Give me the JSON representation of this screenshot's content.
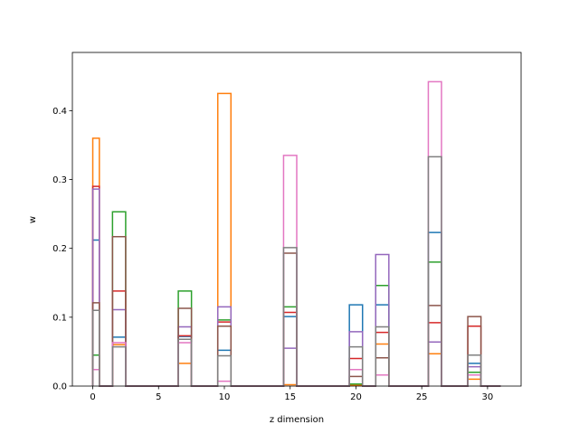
{
  "chart_data": {
    "type": "step",
    "title": "",
    "xlabel": "z dimension",
    "ylabel": "w",
    "xlim": [
      -1.55,
      32.55
    ],
    "ylim": [
      0,
      0.4845
    ],
    "xticks": [
      0,
      5,
      10,
      15,
      20,
      25,
      30
    ],
    "yticks": [
      0.0,
      0.1,
      0.2,
      0.3,
      0.4
    ],
    "xtick_labels": [
      "0",
      "5",
      "10",
      "15",
      "20",
      "25",
      "30"
    ],
    "ytick_labels": [
      "0.0",
      "0.1",
      "0.2",
      "0.3",
      "0.4"
    ],
    "grid": false,
    "legend": false,
    "bin_edges": [
      0,
      0.5,
      1.5,
      2.5,
      3.5,
      4.5,
      5.5,
      6.5,
      7.5,
      8.5,
      9.5,
      10.5,
      11.5,
      12.5,
      13.5,
      14.5,
      15.5,
      16.5,
      17.5,
      18.5,
      19.5,
      20.5,
      21.5,
      22.5,
      23.5,
      24.5,
      25.5,
      26.5,
      27.5,
      28.5,
      29.5,
      31
    ],
    "series": [
      {
        "color": "#1f77b4",
        "values": [
          0.212,
          0,
          0.071,
          0,
          0,
          0,
          0,
          0.072,
          0,
          0,
          0.052,
          0,
          0,
          0,
          0,
          0.101,
          0,
          0,
          0,
          0,
          0.118,
          0,
          0.118,
          0,
          0,
          0,
          0.223,
          0,
          0,
          0.033,
          0
        ]
      },
      {
        "color": "#ff7f0e",
        "values": [
          0.36,
          0,
          0.06,
          0,
          0,
          0,
          0,
          0.033,
          0,
          0,
          0.425,
          0,
          0,
          0,
          0,
          0.002,
          0,
          0,
          0,
          0,
          0.001,
          0,
          0.061,
          0,
          0,
          0,
          0.047,
          0,
          0,
          0.01,
          0
        ]
      },
      {
        "color": "#2ca02c",
        "values": [
          0.045,
          0,
          0.253,
          0,
          0,
          0,
          0,
          0.138,
          0,
          0,
          0.096,
          0,
          0,
          0,
          0,
          0.115,
          0,
          0,
          0,
          0,
          0.003,
          0,
          0.146,
          0,
          0,
          0,
          0.18,
          0,
          0,
          0.02,
          0
        ]
      },
      {
        "color": "#d62728",
        "values": [
          0.29,
          0,
          0.138,
          0,
          0,
          0,
          0,
          0.073,
          0,
          0,
          0.093,
          0,
          0,
          0,
          0,
          0.107,
          0,
          0,
          0,
          0,
          0.04,
          0,
          0.078,
          0,
          0,
          0,
          0.092,
          0,
          0,
          0.087,
          0
        ]
      },
      {
        "color": "#9467bd",
        "values": [
          0.286,
          0,
          0.111,
          0,
          0,
          0,
          0,
          0.086,
          0,
          0,
          0.115,
          0,
          0,
          0,
          0,
          0.055,
          0,
          0,
          0,
          0,
          0.079,
          0,
          0.191,
          0,
          0,
          0,
          0.064,
          0,
          0,
          0.028,
          0
        ]
      },
      {
        "color": "#8c564b",
        "values": [
          0.121,
          0,
          0.217,
          0,
          0,
          0,
          0,
          0.113,
          0,
          0,
          0.087,
          0,
          0,
          0,
          0,
          0.193,
          0,
          0,
          0,
          0,
          0.014,
          0,
          0.041,
          0,
          0,
          0,
          0.117,
          0,
          0,
          0.101,
          0
        ]
      },
      {
        "color": "#e377c2",
        "values": [
          0.024,
          0,
          0.063,
          0,
          0,
          0,
          0,
          0.063,
          0,
          0,
          0.007,
          0,
          0,
          0,
          0,
          0.335,
          0,
          0,
          0,
          0,
          0.024,
          0,
          0.016,
          0,
          0,
          0,
          0.442,
          0,
          0,
          0.016,
          0
        ]
      },
      {
        "color": "#7f7f7f",
        "values": [
          0.11,
          0,
          0.057,
          0,
          0,
          0,
          0,
          0.068,
          0,
          0,
          0.044,
          0,
          0,
          0,
          0,
          0.201,
          0,
          0,
          0,
          0,
          0.057,
          0,
          0.086,
          0,
          0,
          0,
          0.333,
          0,
          0,
          0.045,
          0
        ]
      }
    ]
  }
}
